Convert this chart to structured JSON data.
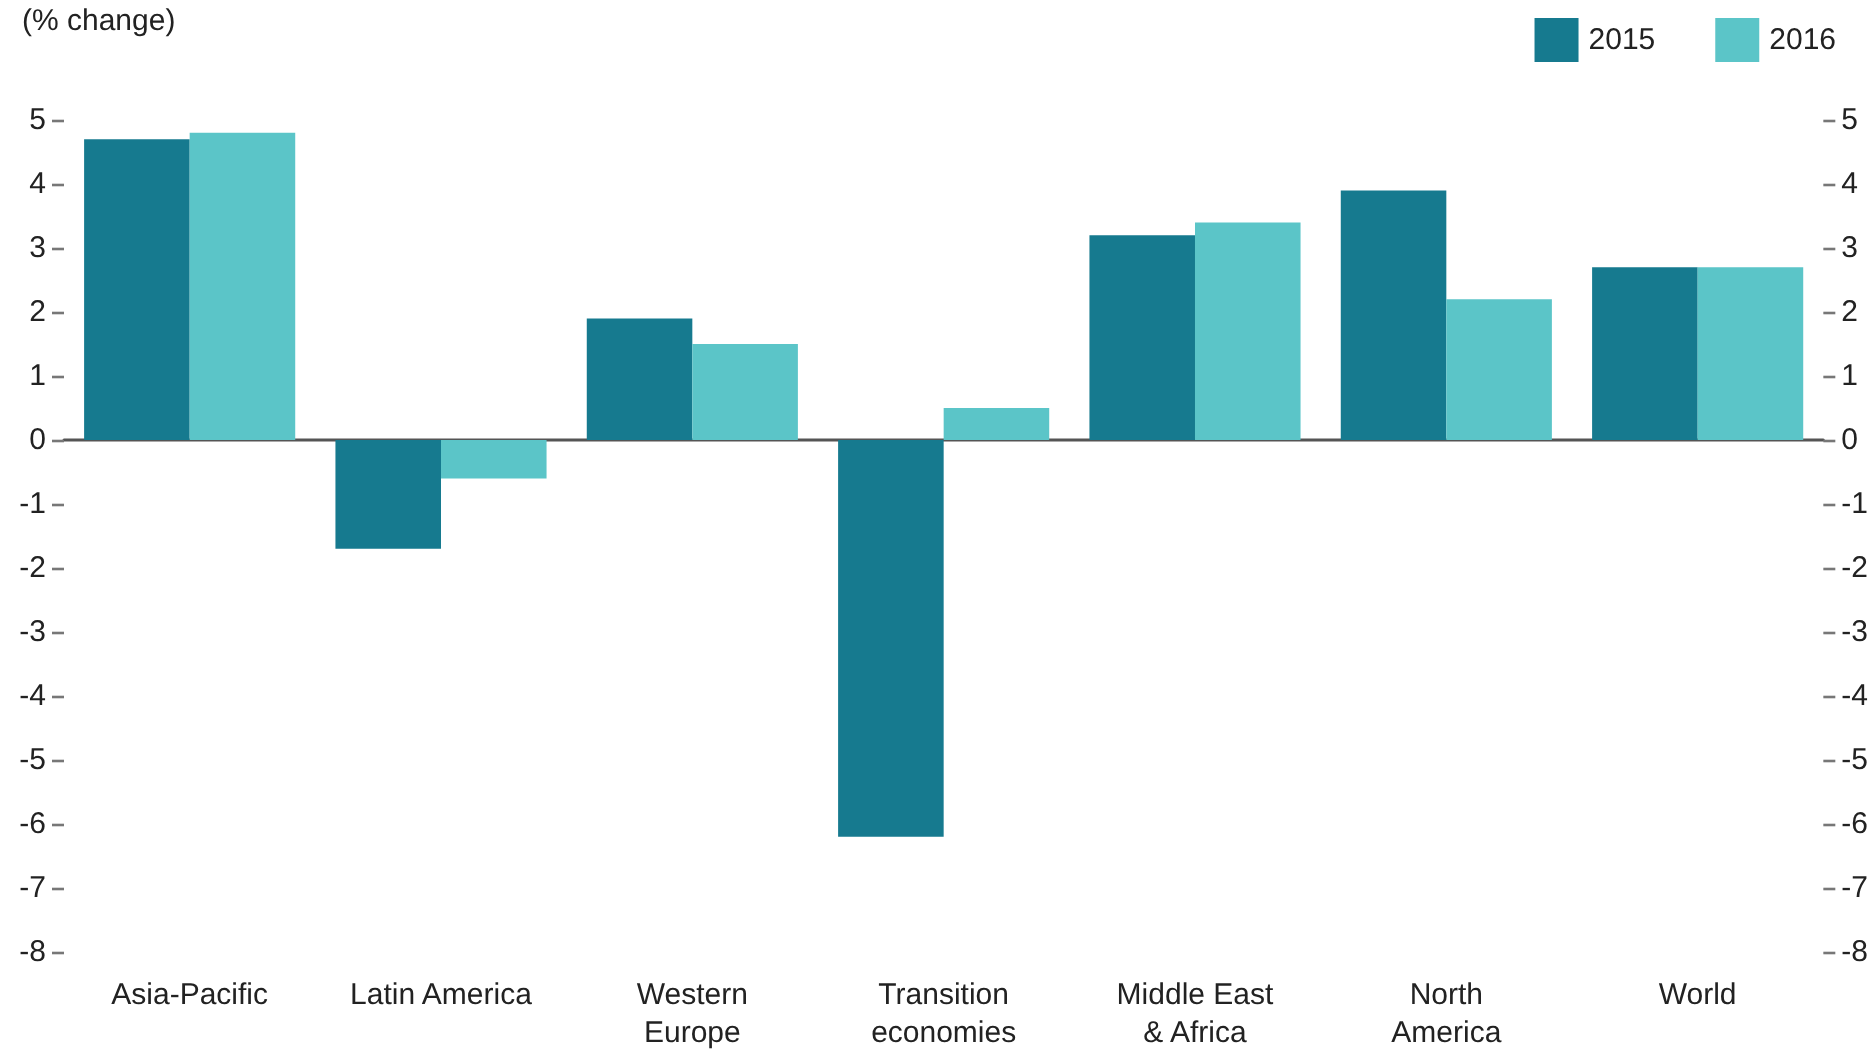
{
  "chart_data": {
    "type": "bar",
    "ylabel": "(% change)",
    "categories": [
      "Asia-Pacific",
      "Latin America",
      "Western\nEurope",
      "Transition\neconomies",
      "Middle East\n& Africa",
      "North\nAmerica",
      "World"
    ],
    "series": [
      {
        "name": "2015",
        "color": "#167a8f",
        "values": [
          4.7,
          -1.7,
          1.9,
          -6.2,
          3.2,
          3.9,
          2.7
        ]
      },
      {
        "name": "2016",
        "color": "#5bc5c8",
        "values": [
          4.8,
          -0.6,
          1.5,
          0.5,
          3.4,
          2.2,
          2.7
        ]
      }
    ],
    "ylim": [
      -8,
      5
    ],
    "yticks": [
      -8,
      -7,
      -6,
      -5,
      -4,
      -3,
      -2,
      -1,
      0,
      1,
      2,
      3,
      4,
      5
    ],
    "y2lim": [
      -8,
      5
    ],
    "y2ticks": [
      -8,
      -7,
      -6,
      -5,
      -4,
      -3,
      -2,
      -1,
      0,
      1,
      2,
      3,
      4,
      5
    ],
    "legend": "top right"
  }
}
